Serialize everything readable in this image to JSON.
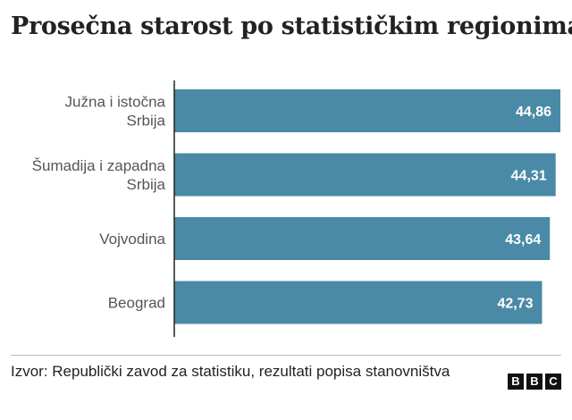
{
  "title": "Prosečna starost po statističkim regionima",
  "source": "Izvor: Republički zavod za statistiku, rezultati popisa stanovništva",
  "logo": [
    "B",
    "B",
    "C"
  ],
  "colors": {
    "bar": "#4a8aa6",
    "axis": "#222222",
    "grid": "#e6e6e6",
    "label": "#555555"
  },
  "chart_data": {
    "type": "bar",
    "orientation": "horizontal",
    "categories": [
      [
        "Južna i istočna",
        "Srbija"
      ],
      [
        "Šumadija i zapadna",
        "Srbija"
      ],
      [
        "Vojvodina"
      ],
      [
        "Beograd"
      ]
    ],
    "values": [
      44.86,
      44.31,
      43.64,
      42.73
    ],
    "value_labels": [
      "44,86",
      "44,31",
      "43,64",
      "42,73"
    ],
    "xlim": [
      0,
      44.86
    ],
    "grid": false
  }
}
